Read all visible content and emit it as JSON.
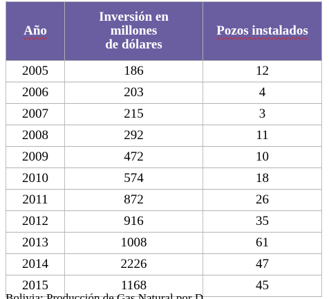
{
  "table": {
    "headers": {
      "year": "Año",
      "investment_line1": "Inversión en",
      "investment_line2": "millones",
      "investment_line3": "de dólares",
      "wells": "Pozos instalados"
    },
    "rows": [
      {
        "year": "2005",
        "investment": "186",
        "wells": "12"
      },
      {
        "year": "2006",
        "investment": "203",
        "wells": "4"
      },
      {
        "year": "2007",
        "investment": "215",
        "wells": "3"
      },
      {
        "year": "2008",
        "investment": "292",
        "wells": "11"
      },
      {
        "year": "2009",
        "investment": "472",
        "wells": "10"
      },
      {
        "year": "2010",
        "investment": "574",
        "wells": "18"
      },
      {
        "year": "2011",
        "investment": "872",
        "wells": "26"
      },
      {
        "year": "2012",
        "investment": "916",
        "wells": "35"
      },
      {
        "year": "2013",
        "investment": "1008",
        "wells": "61"
      },
      {
        "year": "2014",
        "investment": "2226",
        "wells": "47"
      },
      {
        "year": "2015",
        "investment": "1168",
        "wells": "45"
      }
    ]
  },
  "footnote": "Bolivia: Producción de Gas Natural por D..."
}
